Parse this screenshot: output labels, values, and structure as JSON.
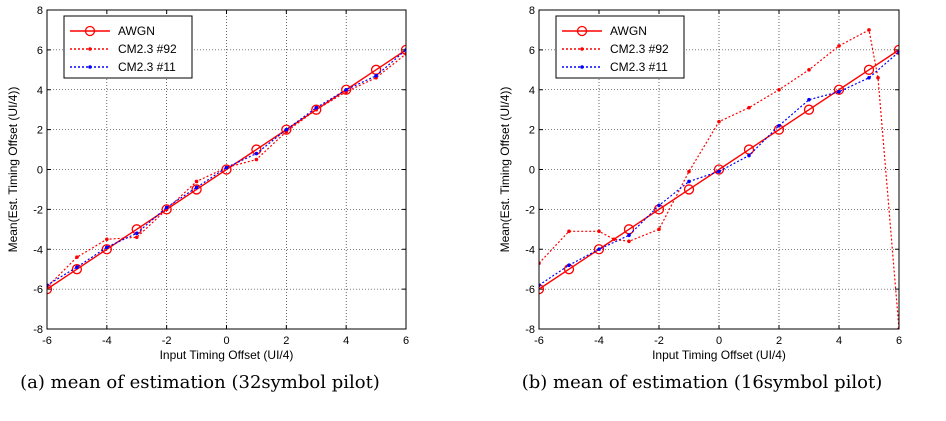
{
  "chart_data": [
    {
      "type": "line",
      "caption": "(a) mean of estimation (32symbol pilot)",
      "xlabel": "Input Timing Offset (UI/4)",
      "ylabel": "Mean(Est. Timing Offset (UI/4))",
      "xlim": [
        -6,
        6
      ],
      "ylim": [
        -8,
        8
      ],
      "xticks": [
        -6,
        -4,
        -2,
        0,
        2,
        4,
        6
      ],
      "yticks": [
        -8,
        -6,
        -4,
        -2,
        0,
        2,
        4,
        6,
        8
      ],
      "grid": true,
      "legend_position": "top-left",
      "series": [
        {
          "name": "AWGN",
          "color": "#ff0000",
          "style": "solid",
          "marker": "circle",
          "x": [
            -6,
            -5,
            -4,
            -3,
            -2,
            -1,
            0,
            1,
            2,
            3,
            4,
            5,
            6
          ],
          "y": [
            -6,
            -5,
            -4,
            -3,
            -2,
            -1,
            0,
            1,
            2,
            3,
            4,
            5,
            6
          ]
        },
        {
          "name": "CM2.3 #92",
          "color": "#ff0000",
          "style": "dotted",
          "marker": "dot",
          "x": [
            -6,
            -5,
            -4,
            -3,
            -2,
            -1,
            0,
            1,
            2,
            3,
            4,
            5,
            6
          ],
          "y": [
            -5.9,
            -4.4,
            -3.5,
            -3.4,
            -2.0,
            -0.6,
            0.1,
            0.5,
            1.9,
            3.0,
            3.9,
            4.6,
            5.8
          ]
        },
        {
          "name": "CM2.3 #11",
          "color": "#0000ff",
          "style": "dotted",
          "marker": "dot",
          "x": [
            -6,
            -5,
            -4,
            -3,
            -2,
            -1,
            0,
            1,
            2,
            3,
            4,
            5,
            6
          ],
          "y": [
            -5.8,
            -4.9,
            -3.9,
            -3.2,
            -1.9,
            -0.9,
            0.1,
            0.8,
            2.0,
            3.1,
            4.0,
            4.7,
            6.0
          ]
        }
      ]
    },
    {
      "type": "line",
      "caption": "(b) mean of estimation (16symbol pilot)",
      "xlabel": "Input Timing Offset (UI/4)",
      "ylabel": "Mean(Est. Timing Offset (UI/4))",
      "xlim": [
        -6,
        6
      ],
      "ylim": [
        -8,
        8
      ],
      "xticks": [
        -6,
        -4,
        -2,
        0,
        2,
        4,
        6
      ],
      "yticks": [
        -8,
        -6,
        -4,
        -2,
        0,
        2,
        4,
        6,
        8
      ],
      "grid": true,
      "legend_position": "top-left",
      "series": [
        {
          "name": "AWGN",
          "color": "#ff0000",
          "style": "solid",
          "marker": "circle",
          "x": [
            -6,
            -5,
            -4,
            -3,
            -2,
            -1,
            0,
            1,
            2,
            3,
            4,
            5,
            6
          ],
          "y": [
            -6,
            -5,
            -4,
            -3,
            -2,
            -1,
            0,
            1,
            2,
            3,
            4,
            5,
            6
          ]
        },
        {
          "name": "CM2.3 #92",
          "color": "#ff0000",
          "style": "dotted",
          "marker": "dot",
          "x": [
            -6,
            -5,
            -4,
            -3.5,
            -3,
            -2,
            -1,
            0,
            1,
            2,
            3,
            4,
            5,
            5.3,
            6
          ],
          "y": [
            -4.7,
            -3.1,
            -3.1,
            -3.5,
            -3.6,
            -3.0,
            -0.1,
            2.4,
            3.1,
            4.0,
            5.0,
            6.2,
            7.0,
            4.6,
            -8.0
          ]
        },
        {
          "name": "CM2.3 #11",
          "color": "#0000ff",
          "style": "dotted",
          "marker": "dot",
          "x": [
            -6,
            -5,
            -4,
            -3,
            -2,
            -1,
            0,
            1,
            2,
            3,
            4,
            5,
            6
          ],
          "y": [
            -5.8,
            -4.8,
            -4.0,
            -3.3,
            -1.8,
            -0.6,
            -0.1,
            0.7,
            2.2,
            3.5,
            3.9,
            4.6,
            5.9
          ]
        }
      ]
    }
  ]
}
